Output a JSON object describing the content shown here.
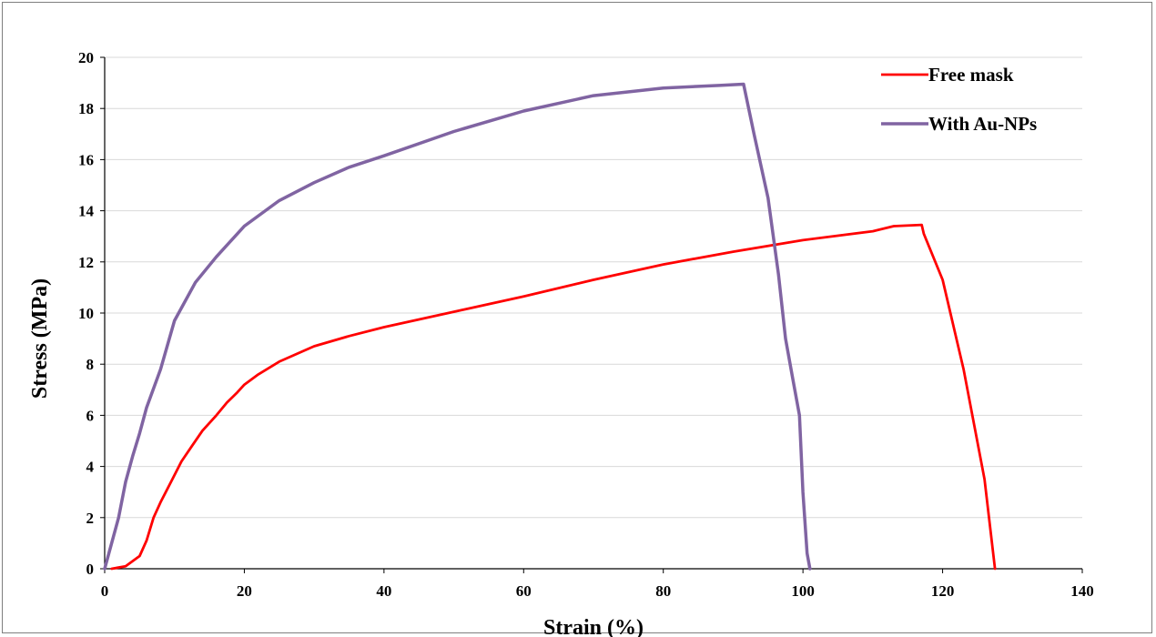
{
  "chart_data": {
    "type": "line",
    "xlabel": "Strain (%)",
    "ylabel": "Stress (MPa)",
    "xlim": [
      0,
      140
    ],
    "ylim": [
      0,
      20
    ],
    "x_ticks": [
      "0",
      "20",
      "40",
      "60",
      "80",
      "100",
      "120",
      "140"
    ],
    "y_ticks": [
      "0",
      "2",
      "4",
      "6",
      "8",
      "10",
      "12",
      "14",
      "16",
      "18",
      "20"
    ],
    "grid": "horizontal",
    "legend_position": "top-right",
    "series": [
      {
        "name": "Free mask",
        "color": "#ff0000",
        "points": [
          [
            1,
            0
          ],
          [
            3,
            0.1
          ],
          [
            5,
            0.5
          ],
          [
            6,
            1.1
          ],
          [
            7,
            2.0
          ],
          [
            8,
            2.6
          ],
          [
            9.5,
            3.4
          ],
          [
            11,
            4.2
          ],
          [
            12.5,
            4.8
          ],
          [
            14,
            5.4
          ],
          [
            16,
            6.0
          ],
          [
            17.5,
            6.5
          ],
          [
            19,
            6.9
          ],
          [
            20,
            7.2
          ],
          [
            22,
            7.6
          ],
          [
            25,
            8.1
          ],
          [
            30,
            8.7
          ],
          [
            35,
            9.1
          ],
          [
            40,
            9.45
          ],
          [
            50,
            10.05
          ],
          [
            60,
            10.65
          ],
          [
            70,
            11.3
          ],
          [
            80,
            11.9
          ],
          [
            90,
            12.4
          ],
          [
            100,
            12.85
          ],
          [
            110,
            13.2
          ],
          [
            113,
            13.4
          ],
          [
            117,
            13.45
          ],
          [
            117.3,
            13.1
          ],
          [
            120,
            11.3
          ],
          [
            123,
            7.8
          ],
          [
            126,
            3.5
          ],
          [
            127.5,
            0
          ]
        ]
      },
      {
        "name": "With Au-NPs",
        "color": "#8064a2",
        "points": [
          [
            0,
            0
          ],
          [
            2,
            2.0
          ],
          [
            3,
            3.4
          ],
          [
            4,
            4.4
          ],
          [
            5,
            5.3
          ],
          [
            6,
            6.3
          ],
          [
            8,
            7.8
          ],
          [
            10,
            9.7
          ],
          [
            13,
            11.2
          ],
          [
            16,
            12.2
          ],
          [
            20,
            13.4
          ],
          [
            25,
            14.4
          ],
          [
            30,
            15.1
          ],
          [
            35,
            15.7
          ],
          [
            40,
            16.15
          ],
          [
            50,
            17.1
          ],
          [
            60,
            17.9
          ],
          [
            70,
            18.5
          ],
          [
            80,
            18.8
          ],
          [
            88,
            18.9
          ],
          [
            91.5,
            18.95
          ],
          [
            93,
            17.0
          ],
          [
            95,
            14.5
          ],
          [
            96.5,
            11.5
          ],
          [
            97.5,
            9.0
          ],
          [
            98.5,
            7.5
          ],
          [
            99.5,
            6.0
          ],
          [
            100,
            3.0
          ],
          [
            100.6,
            0.6
          ],
          [
            101,
            0
          ]
        ]
      }
    ]
  }
}
